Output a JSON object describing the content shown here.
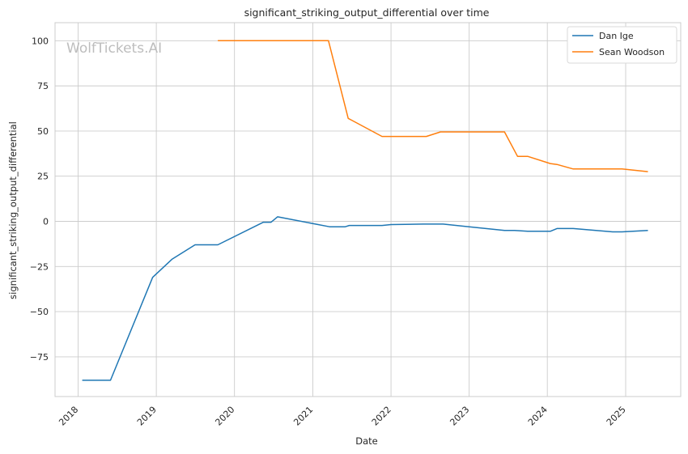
{
  "chart_data": {
    "type": "line",
    "title": "significant_striking_output_differential over time",
    "xlabel": "Date",
    "ylabel": "significant_striking_output_differential",
    "watermark": "WolfTickets.AI",
    "x_ticks": [
      "2018",
      "2019",
      "2020",
      "2021",
      "2022",
      "2023",
      "2024",
      "2025"
    ],
    "y_ticks": [
      100,
      75,
      50,
      25,
      0,
      -25,
      -50,
      -75
    ],
    "xlim": [
      "2017-09-15",
      "2025-09-15"
    ],
    "ylim": [
      -97,
      110
    ],
    "grid": true,
    "legend_position": "top-right",
    "series": [
      {
        "name": "Dan Ige",
        "color": "#1f77b4",
        "x": [
          "2018-01-20",
          "2018-06-01",
          "2018-12-15",
          "2019-03-15",
          "2019-07-01",
          "2019-10-15",
          "2020-05-15",
          "2020-06-20",
          "2020-07-20",
          "2021-03-20",
          "2021-06-01",
          "2021-06-20",
          "2021-11-20",
          "2022-01-01",
          "2022-06-01",
          "2022-09-01",
          "2023-01-01",
          "2023-06-15",
          "2023-08-01",
          "2023-10-01",
          "2024-01-15",
          "2024-02-15",
          "2024-05-01",
          "2024-11-01",
          "2024-12-15",
          "2025-04-15"
        ],
        "values": [
          -88,
          -88,
          -31,
          -21,
          -13,
          -13,
          -0.5,
          -0.5,
          2.5,
          -3,
          -3,
          -2.3,
          -2.3,
          -1.8,
          -1.5,
          -1.5,
          -3,
          -5,
          -5,
          -5.5,
          -5.5,
          -4,
          -4,
          -5.8,
          -5.8,
          -5
        ]
      },
      {
        "name": "Sean Woodson",
        "color": "#ff7f0e",
        "x": [
          "2019-10-15",
          "2021-03-15",
          "2021-06-15",
          "2021-07-01",
          "2021-11-20",
          "2022-06-15",
          "2022-08-20",
          "2023-06-15",
          "2023-08-15",
          "2023-10-01",
          "2024-01-15",
          "2024-02-15",
          "2024-05-01",
          "2024-12-15",
          "2025-04-15"
        ],
        "values": [
          100,
          100,
          57,
          56,
          47,
          47,
          49.5,
          49.5,
          36,
          36,
          32,
          31.5,
          29,
          29,
          27.5
        ]
      }
    ]
  }
}
